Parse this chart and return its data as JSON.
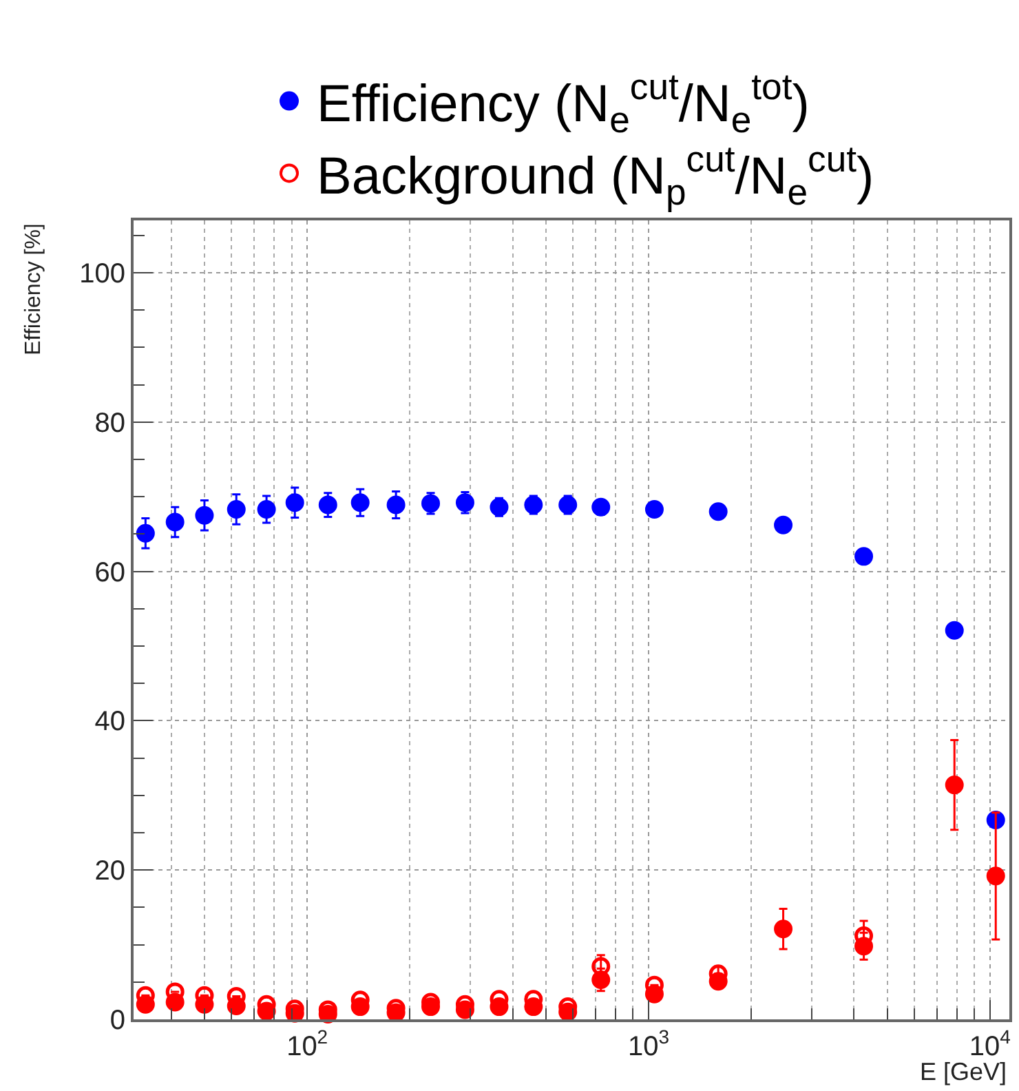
{
  "chart_data": {
    "type": "scatter",
    "xlabel": "E [GeV]",
    "ylabel": "Efficiency [%]",
    "log": "x",
    "grid": true,
    "legend": "top",
    "marker": "circle",
    "x": [
      33.6,
      41,
      50,
      62,
      76,
      92,
      115,
      143,
      182,
      230,
      290,
      365,
      460,
      580,
      725,
      1040,
      1600,
      2480,
      4270,
      7870,
      10400
    ],
    "xlim": [
      31,
      11400
    ],
    "xticks": [
      {
        "value": 100,
        "label": "10$^{2}$"
      },
      {
        "value": 1000,
        "label": "10$^{3}$"
      },
      {
        "value": 10000,
        "label": "10$^{4}$"
      }
    ],
    "ylim": [
      0,
      107
    ],
    "yticks": [
      0,
      20,
      40,
      60,
      80,
      100
    ],
    "series": [
      {
        "name": "Efficiency (N$_{e}$$^{cut}$/N$_{e}$$^{tot}$)",
        "color": "#0000ff",
        "values": [
          65.1,
          66.6,
          67.5,
          68.3,
          68.3,
          69.2,
          68.9,
          69.2,
          68.9,
          69.1,
          69.2,
          68.6,
          68.9,
          68.9,
          68.6,
          68.3,
          68.0,
          66.2,
          62.0,
          52.1,
          26.7
        ],
        "errors": [
          2.0,
          2.0,
          2.0,
          2.0,
          1.8,
          2.0,
          1.6,
          1.8,
          1.8,
          1.4,
          1.4,
          1.2,
          1.2,
          1.2,
          1.0,
          null,
          null,
          null,
          null,
          null,
          null
        ]
      },
      {
        "name": "Background (N$_{p}$$^{cut}$/N$_{e}$$^{cut}$)",
        "color": "#ff0000",
        "marker": "circle-open",
        "values": [
          3.2,
          3.7,
          3.2,
          3.1,
          2.0,
          1.4,
          1.3,
          2.6,
          1.5,
          2.3,
          2.0,
          2.7,
          2.7,
          1.7,
          7.1,
          4.6,
          6.1,
          null,
          11.2,
          null,
          null
        ],
        "errors": [
          null,
          null,
          null,
          null,
          null,
          null,
          null,
          null,
          null,
          null,
          null,
          null,
          null,
          null,
          1.5,
          null,
          1.0,
          null,
          2.0,
          null,
          null
        ]
      },
      {
        "color": "#ff0000",
        "values": [
          2.0,
          2.3,
          2.0,
          1.8,
          1.1,
          0.8,
          0.7,
          1.7,
          0.9,
          1.7,
          1.3,
          1.7,
          1.7,
          1.0,
          5.3,
          3.4,
          5.1,
          12.1,
          9.8,
          31.4,
          19.2
        ],
        "errors": [
          null,
          null,
          null,
          null,
          null,
          null,
          null,
          null,
          null,
          null,
          null,
          null,
          null,
          null,
          1.5,
          null,
          1.0,
          2.7,
          1.8,
          6.0,
          8.5
        ]
      }
    ]
  }
}
